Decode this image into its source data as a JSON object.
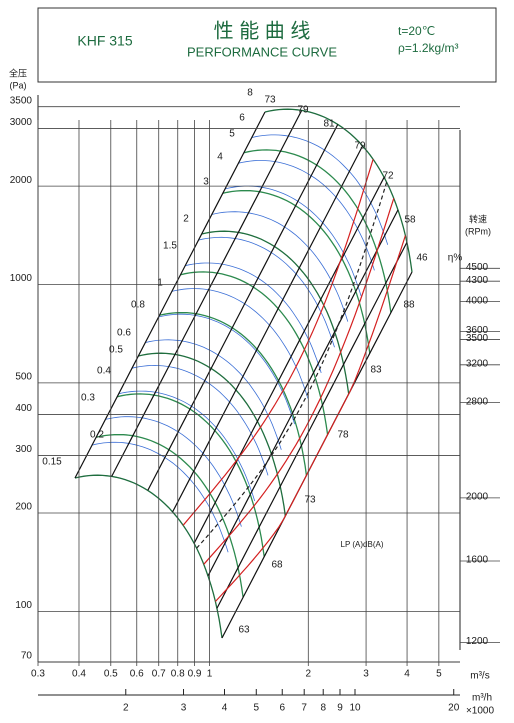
{
  "chart_data": {
    "type": "fan-performance",
    "model": "KHF 315",
    "title": "性 能 曲 线",
    "subtitle": "PERFORMANCE CURVE",
    "conditions": [
      "t=20℃",
      "ρ=1.2kg/m³"
    ],
    "y_label": [
      "全压",
      "(Pa)"
    ],
    "y2_label": [
      "转速",
      "(RPm)"
    ],
    "x_label": "m³/s",
    "x2_label": [
      "m³/h",
      "×1000"
    ],
    "log_scale": true,
    "ylim": [
      70,
      3800
    ],
    "yticks": [
      70,
      100,
      200,
      300,
      400,
      500,
      1000,
      2000,
      3000,
      3500
    ],
    "y2lim": [
      1120,
      8300
    ],
    "y2ticks": [
      1200,
      1600,
      2000,
      2800,
      3200,
      3500,
      3600,
      4000,
      4300,
      4500
    ],
    "xlim": [
      0.3,
      5.8
    ],
    "xticks": [
      0.3,
      0.4,
      0.5,
      0.6,
      0.7,
      0.8,
      0.9,
      1,
      2,
      3,
      4,
      5
    ],
    "x2lim": [
      1.08,
      20.9
    ],
    "x2ticks": [
      2,
      3,
      4,
      5,
      6,
      7,
      8,
      9,
      10,
      20
    ],
    "power_labels": [
      0.15,
      0.2,
      0.3,
      0.4,
      0.5,
      0.6,
      0.8,
      1,
      1.5,
      2,
      3,
      4,
      5,
      6,
      8
    ],
    "efficiency_label": "η%",
    "efficiency_labels": [
      73,
      79,
      81,
      79,
      72,
      58,
      46
    ],
    "noise_label": "LP (A)dB(A)",
    "noise_labels": [
      63,
      68,
      73,
      78,
      83,
      88
    ]
  }
}
